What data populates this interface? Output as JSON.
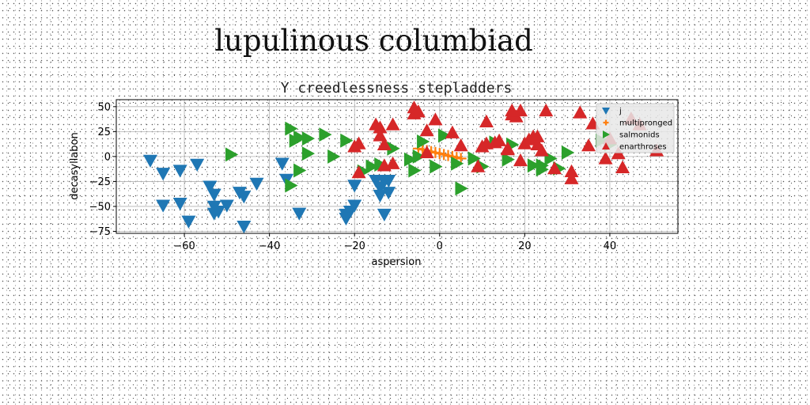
{
  "figure": {
    "suptitle": "lupulinous columbiad"
  },
  "chart_data": {
    "type": "scatter",
    "title": "Y creedlessness stepladders",
    "xlabel": "aspersion",
    "ylabel": "decasyllabon",
    "xlim": [
      -76,
      56
    ],
    "ylim": [
      -77,
      57
    ],
    "xticks": [
      -60,
      -40,
      -20,
      0,
      20,
      40
    ],
    "yticks": [
      50,
      25,
      0,
      -25,
      -50,
      -75
    ],
    "grid": true,
    "legend_position": "top-right",
    "series": [
      {
        "name": "j",
        "color": "#1f77b4",
        "marker": "triangle-down",
        "points": [
          [
            -68,
            -4
          ],
          [
            -65,
            -17
          ],
          [
            -65,
            -49
          ],
          [
            -61,
            -14
          ],
          [
            -61,
            -47
          ],
          [
            -59,
            -65
          ],
          [
            -57,
            -8
          ],
          [
            -54,
            -30
          ],
          [
            -53,
            -38
          ],
          [
            -53,
            -50
          ],
          [
            -53,
            -57
          ],
          [
            -52,
            -55
          ],
          [
            -50,
            -49
          ],
          [
            -47,
            -36
          ],
          [
            -46,
            -70
          ],
          [
            -46,
            -40
          ],
          [
            -43,
            -27
          ],
          [
            -37,
            -7
          ],
          [
            -36,
            -23
          ],
          [
            -33,
            -57
          ],
          [
            -20,
            -29
          ],
          [
            -20,
            -49
          ],
          [
            -21,
            -55
          ],
          [
            -22,
            -58
          ],
          [
            -22,
            -62
          ],
          [
            -15,
            -24
          ],
          [
            -14,
            -31
          ],
          [
            -14,
            -39
          ],
          [
            -13,
            -25
          ],
          [
            -13,
            -58
          ],
          [
            -12,
            -24
          ],
          [
            -12,
            -36
          ]
        ]
      },
      {
        "name": "multipronged",
        "color": "#ff7f0e",
        "marker": "plus",
        "points": [
          [
            -5,
            8
          ],
          [
            -4,
            7
          ],
          [
            -3,
            6
          ],
          [
            -2,
            5
          ],
          [
            -1,
            4
          ],
          [
            0,
            3
          ],
          [
            1,
            2
          ],
          [
            2,
            1
          ],
          [
            3,
            0
          ],
          [
            4,
            -1
          ],
          [
            5,
            -2
          ]
        ]
      },
      {
        "name": "salmonids",
        "color": "#2ca02c",
        "marker": "triangle-right",
        "points": [
          [
            -49,
            2
          ],
          [
            -35,
            28
          ],
          [
            -35,
            -29
          ],
          [
            -34,
            16
          ],
          [
            -33,
            -14
          ],
          [
            -33,
            19
          ],
          [
            -31,
            18
          ],
          [
            -31,
            3
          ],
          [
            -27,
            22
          ],
          [
            -25,
            0
          ],
          [
            -22,
            16
          ],
          [
            -18,
            -15
          ],
          [
            -16,
            -10
          ],
          [
            -14,
            -8
          ],
          [
            -11,
            8
          ],
          [
            -7,
            -3
          ],
          [
            -6,
            -14
          ],
          [
            -5,
            0
          ],
          [
            -4,
            15
          ],
          [
            -1,
            -10
          ],
          [
            1,
            21
          ],
          [
            4,
            -7
          ],
          [
            5,
            -32
          ],
          [
            8,
            -2
          ],
          [
            10,
            -10
          ],
          [
            13,
            14
          ],
          [
            16,
            -3
          ],
          [
            17,
            12
          ],
          [
            22,
            -9
          ],
          [
            24,
            -9
          ],
          [
            24,
            -13
          ],
          [
            26,
            -2
          ],
          [
            28,
            -12
          ],
          [
            30,
            4
          ],
          [
            38,
            16
          ],
          [
            40,
            12
          ]
        ]
      },
      {
        "name": "enarthroses",
        "color": "#d62728",
        "marker": "triangle-up",
        "points": [
          [
            -20,
            10
          ],
          [
            -19,
            13
          ],
          [
            -19,
            -16
          ],
          [
            -15,
            32
          ],
          [
            -14,
            29
          ],
          [
            -14,
            21
          ],
          [
            -13,
            -9
          ],
          [
            -13,
            12
          ],
          [
            -11,
            -7
          ],
          [
            -11,
            32
          ],
          [
            -6,
            43
          ],
          [
            -6,
            49
          ],
          [
            -5,
            45
          ],
          [
            -3,
            26
          ],
          [
            -3,
            4
          ],
          [
            -1,
            37
          ],
          [
            3,
            24
          ],
          [
            5,
            11
          ],
          [
            9,
            -10
          ],
          [
            10,
            10
          ],
          [
            11,
            13
          ],
          [
            11,
            35
          ],
          [
            13,
            14
          ],
          [
            14,
            16
          ],
          [
            16,
            8
          ],
          [
            16,
            7
          ],
          [
            17,
            42
          ],
          [
            17,
            46
          ],
          [
            18,
            40
          ],
          [
            19,
            46
          ],
          [
            19,
            -4
          ],
          [
            20,
            13
          ],
          [
            21,
            17
          ],
          [
            22,
            20
          ],
          [
            23,
            12
          ],
          [
            23,
            20
          ],
          [
            24,
            6
          ],
          [
            25,
            46
          ],
          [
            27,
            -12
          ],
          [
            31,
            -15
          ],
          [
            31,
            -22
          ],
          [
            33,
            44
          ],
          [
            35,
            11
          ],
          [
            36,
            33
          ],
          [
            39,
            -2
          ],
          [
            40,
            18
          ],
          [
            42,
            3
          ],
          [
            43,
            -11
          ],
          [
            45,
            38
          ],
          [
            47,
            32
          ],
          [
            51,
            6
          ]
        ]
      }
    ]
  }
}
